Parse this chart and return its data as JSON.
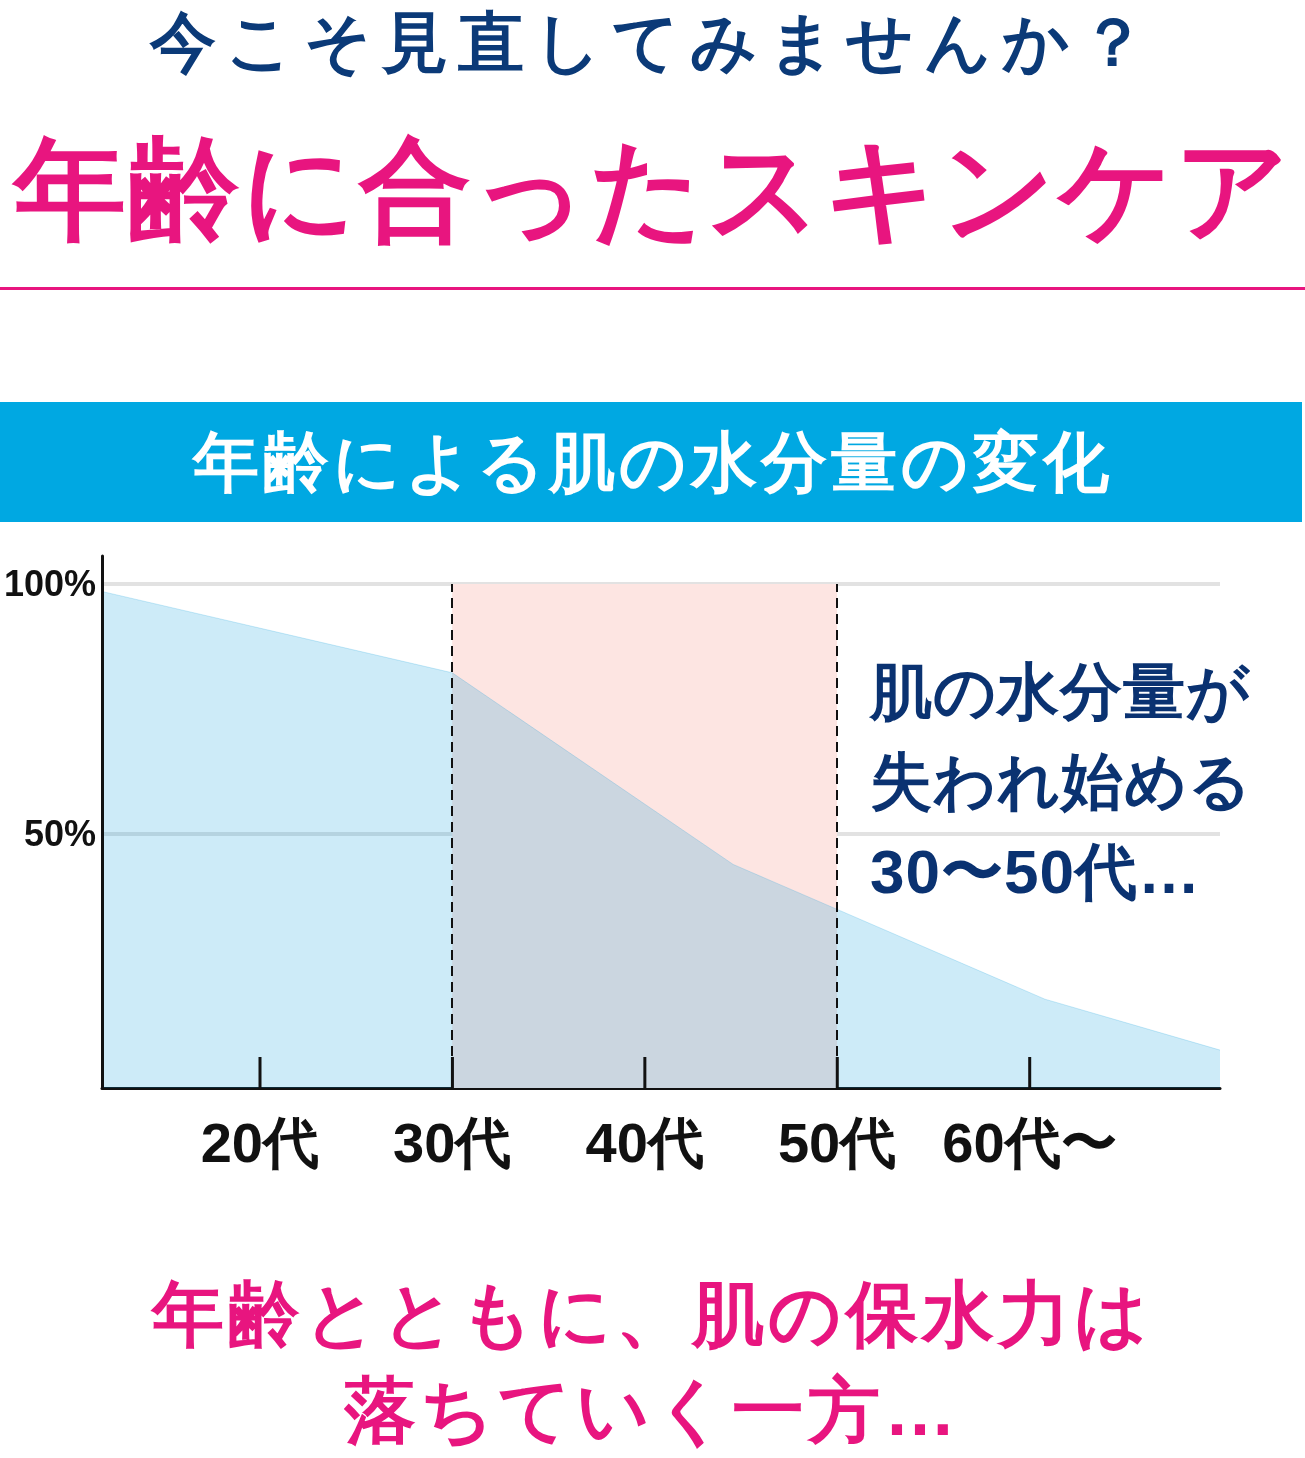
{
  "chart_data": {
    "type": "area",
    "title": "年齢による肌の水分量の変化",
    "annotations": [
      "今こそ見直してみませんか？",
      "年齢に合ったスキンケア",
      "肌の水分量が失われ始める30〜50代…",
      "年齢とともに、肌の保水力は落ちていく一方…"
    ],
    "x": [
      11.9,
      30,
      44.6,
      60.8,
      69.9
    ],
    "values": [
      98.4,
      82.2,
      43.8,
      16.8,
      6.6
    ],
    "color": "#059bdc",
    "xlim": [
      11.8,
      69.9
    ],
    "xticks": [
      {
        "value": 20,
        "label": "20代"
      },
      {
        "value": 30,
        "label": "30代"
      },
      {
        "value": 40,
        "label": "40代"
      },
      {
        "value": 50,
        "label": "50代"
      },
      {
        "value": 60,
        "label": "60代〜"
      }
    ],
    "ylim": [
      -1,
      105.6
    ],
    "yticks": [
      {
        "value": 50,
        "label": "50%"
      },
      {
        "value": 100,
        "label": "100%"
      }
    ],
    "grid": "y",
    "marker": "none",
    "bands": [
      {
        "axis": "x",
        "from": 30,
        "to": 50,
        "color": "#fde5e2"
      }
    ],
    "ref_lines": [
      {
        "axis": "x",
        "value": 30,
        "color": "#111111",
        "line_style": "dashed"
      },
      {
        "axis": "x",
        "value": 50,
        "color": "#111111",
        "line_style": "dashed"
      }
    ]
  }
}
